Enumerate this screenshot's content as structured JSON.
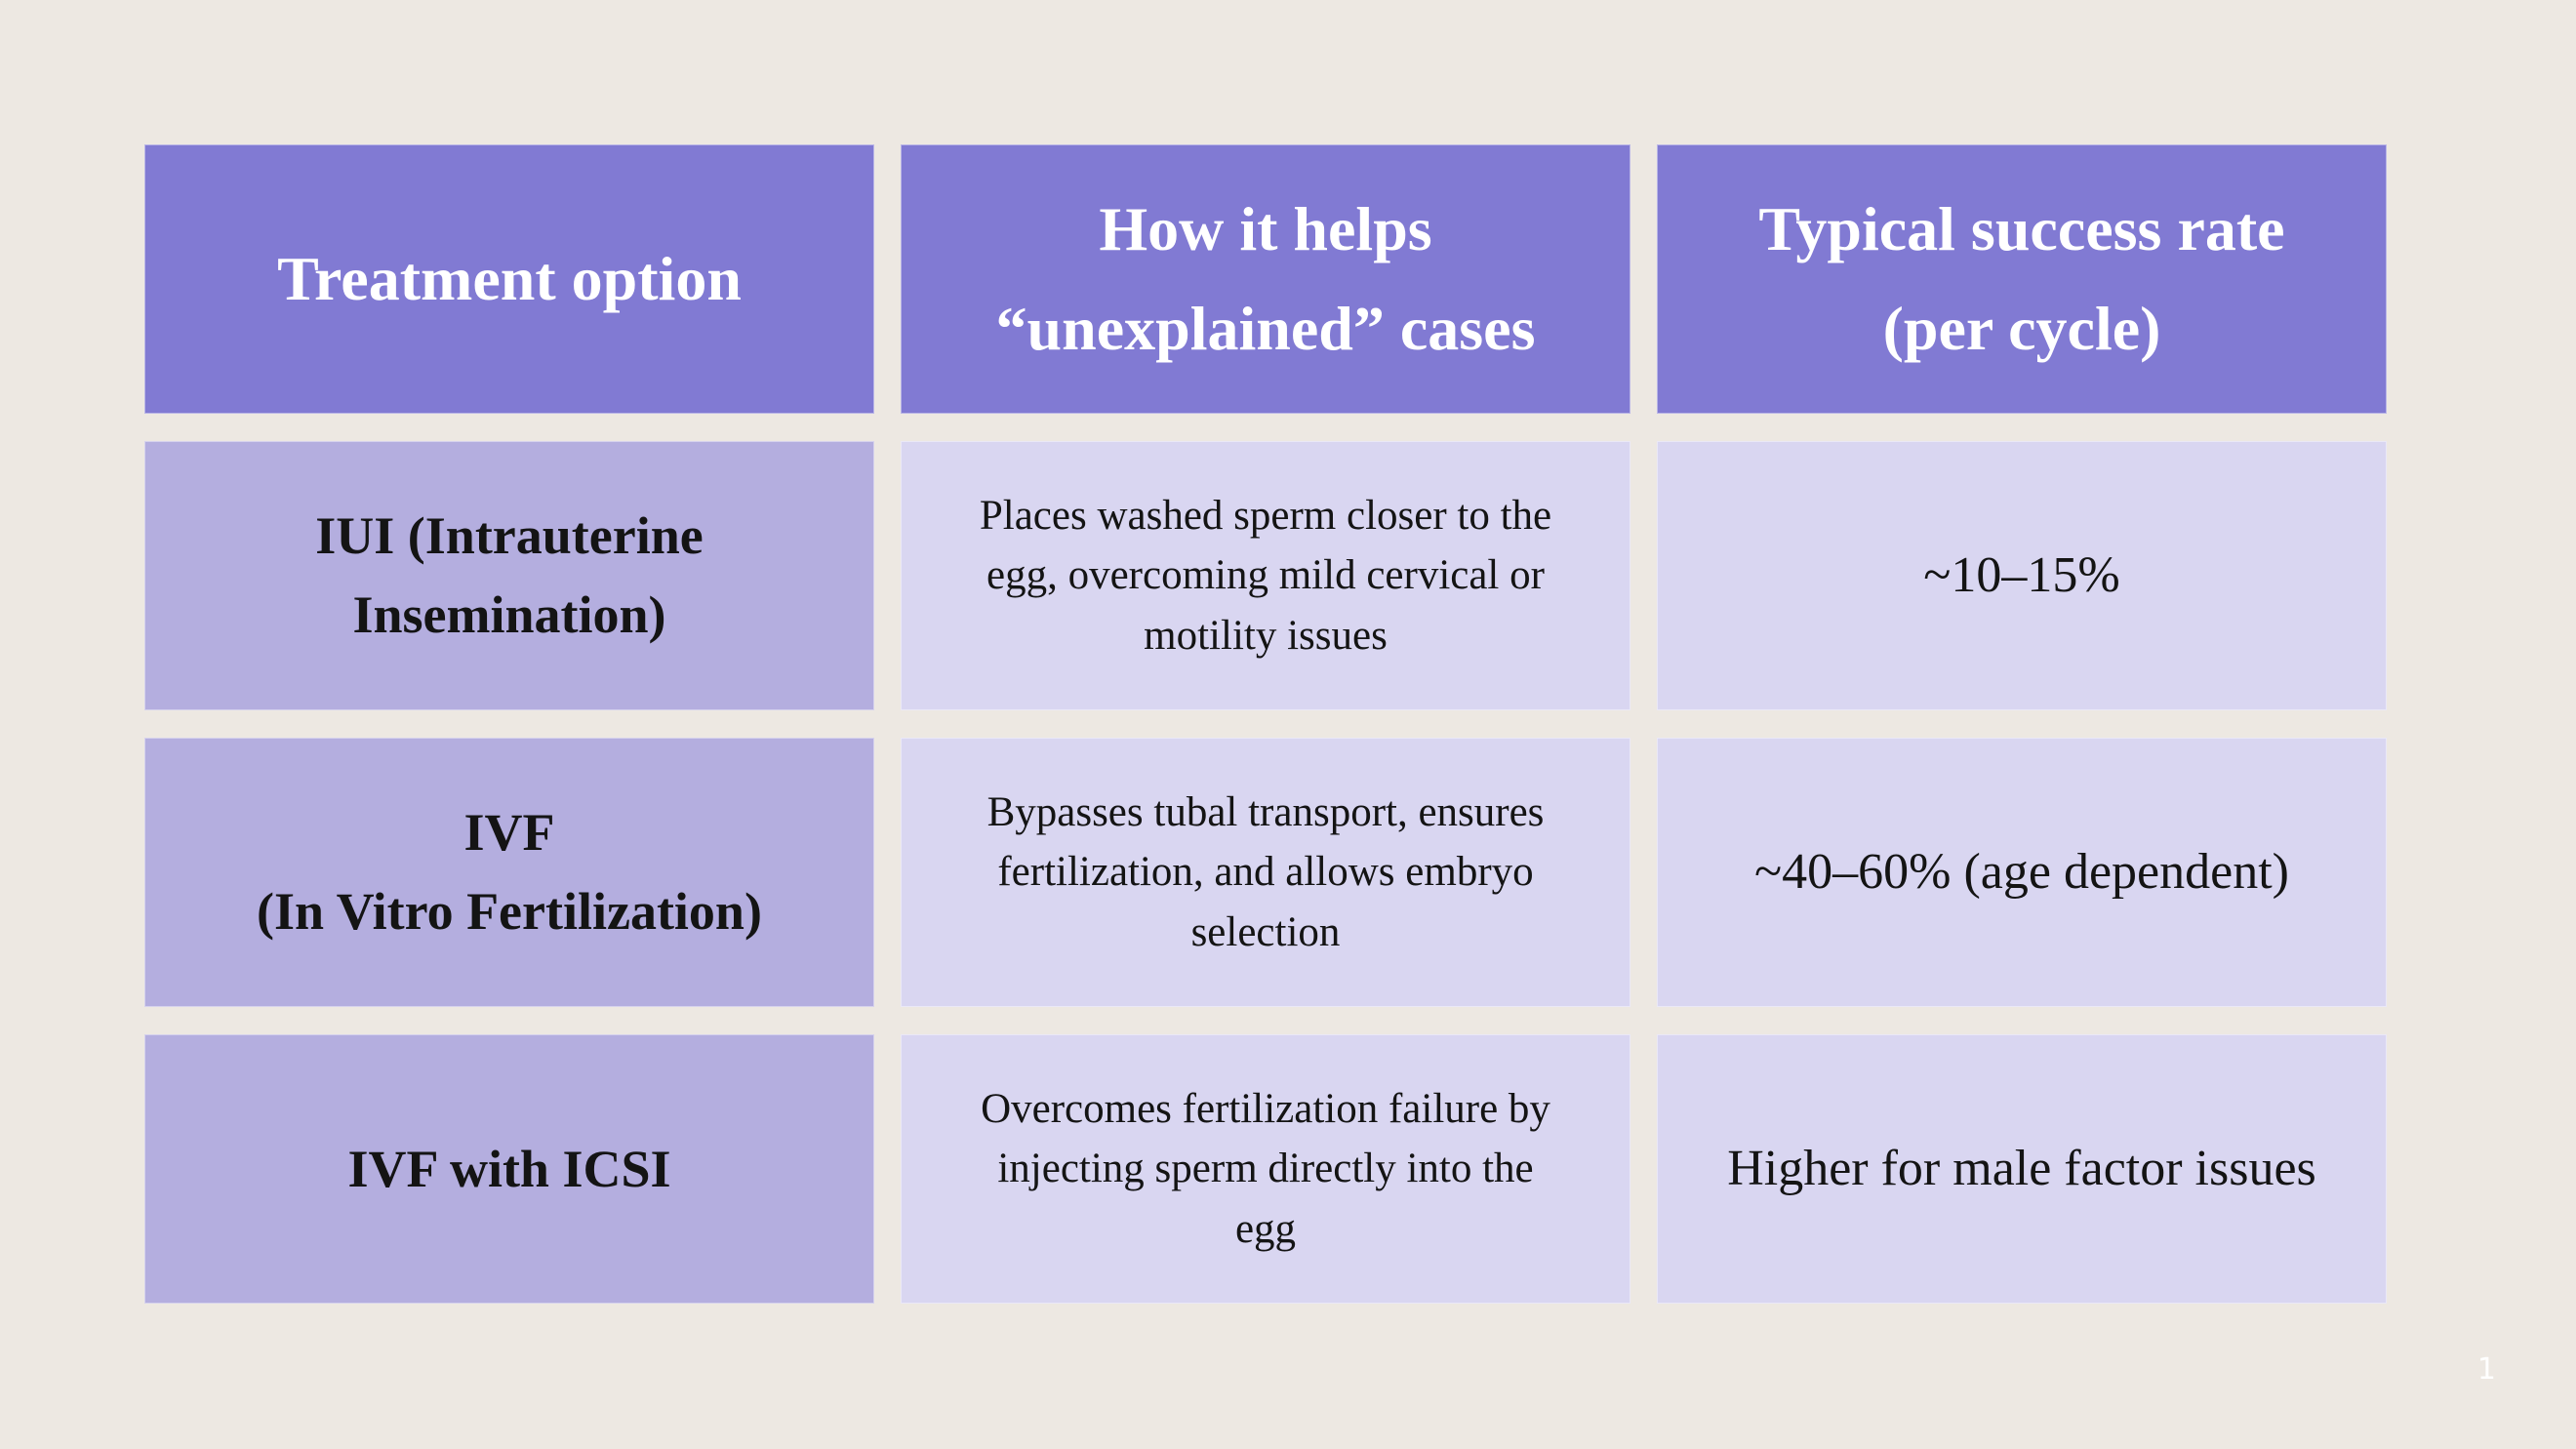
{
  "colors": {
    "canvas_bg": "#EDE8E2",
    "header_bg": "#817AD3",
    "label_bg": "#B4AEDF",
    "cell_bg": "#D9D6F1",
    "header_text": "#FFFFFF",
    "body_text": "#141414",
    "page_number_text": "#FFFFFF"
  },
  "page": {
    "number": "1"
  },
  "table": {
    "headers": [
      "Treatment option",
      "How it helps\n“unexplained” cases",
      "Typical success rate\n(per cycle)"
    ],
    "rows": [
      {
        "option": "IUI (Intrauterine\nInsemination)",
        "how": "Places washed sperm closer to the\negg, overcoming mild cervical or\nmotility issues",
        "rate": "~10–15%"
      },
      {
        "option": "IVF\n(In Vitro Fertilization)",
        "how": "Bypasses tubal transport, ensures\nfertilization, and allows embryo\nselection",
        "rate": "~40–60% (age dependent)"
      },
      {
        "option": "IVF with ICSI",
        "how": "Overcomes fertilization failure by\ninjecting sperm directly into the\negg",
        "rate": "Higher for male factor issues"
      }
    ]
  }
}
